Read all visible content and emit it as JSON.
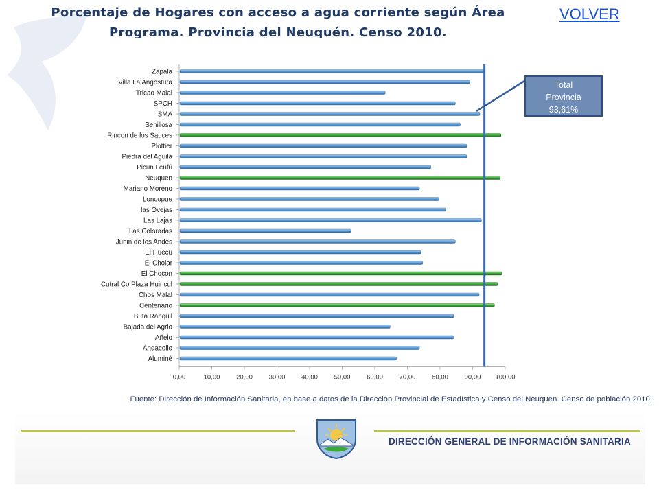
{
  "page": {
    "title_line1": "Porcentaje  de Hogares con acceso a agua corriente según Área",
    "title_line2": "Programa. Provincia del Neuquén. Censo 2010.",
    "back_link": "VOLVER",
    "source": "Fuente: Dirección de Información Sanitaria, en base a datos de la Dirección Provincial de Estadística y Censo del Neuquén. Censo de población 2010.",
    "footer_name": "DIRECCIÓN GENERAL DE INFORMACIÓN SANITARIA"
  },
  "callout": {
    "line1": "Total",
    "line2": "Provincia",
    "line3": "93,61%"
  },
  "colors": {
    "bar_default": "#5b9bd5",
    "bar_highlight": "#3aa93a",
    "reference_line": "#3a6ab0",
    "title": "#1f3a66"
  },
  "chart_data": {
    "type": "bar",
    "orientation": "horizontal",
    "title": "Porcentaje de Hogares con acceso a agua corriente según Área Programa. Provincia del Neuquén. Censo 2010.",
    "xlabel": "",
    "ylabel": "",
    "xlim": [
      0,
      100
    ],
    "ticks": [
      "0,00",
      "10,00",
      "20,00",
      "30,00",
      "40,00",
      "50,00",
      "60,00",
      "70,00",
      "80,00",
      "90,00",
      "100,00"
    ],
    "reference_value": 93.61,
    "categories": [
      "Zapala",
      "Villa La Angostura",
      "Tricao Malal",
      "SPCH",
      "SMA",
      "Senillosa",
      "Rincon de los Sauces",
      "Plottier",
      "Piedra del Aguila",
      "Picun Leufú",
      "Neuquen",
      "Mariano Moreno",
      "Loncopue",
      "las Ovejas",
      "Las Lajas",
      "Las Coloradas",
      "Junin de los Andes",
      "El Huecu",
      "El Cholar",
      "El Chocon",
      "Cutral Co Plaza Huincul",
      "Chos Malal",
      "Centenario",
      "Buta Ranquil",
      "Bajada del Agrio",
      "Añelo",
      "Andacollo",
      "Aluminé"
    ],
    "values": [
      93.5,
      89.0,
      63.0,
      84.5,
      92.0,
      86.0,
      98.5,
      88.0,
      88.0,
      77.0,
      98.3,
      73.5,
      79.5,
      81.5,
      92.5,
      52.5,
      84.5,
      74.0,
      74.5,
      98.8,
      97.5,
      91.8,
      96.5,
      84.0,
      64.5,
      84.0,
      73.5,
      66.5
    ],
    "highlighted": [
      "Rincon de los Sauces",
      "Neuquen",
      "El Chocon",
      "Cutral Co Plaza Huincul",
      "Centenario"
    ]
  }
}
